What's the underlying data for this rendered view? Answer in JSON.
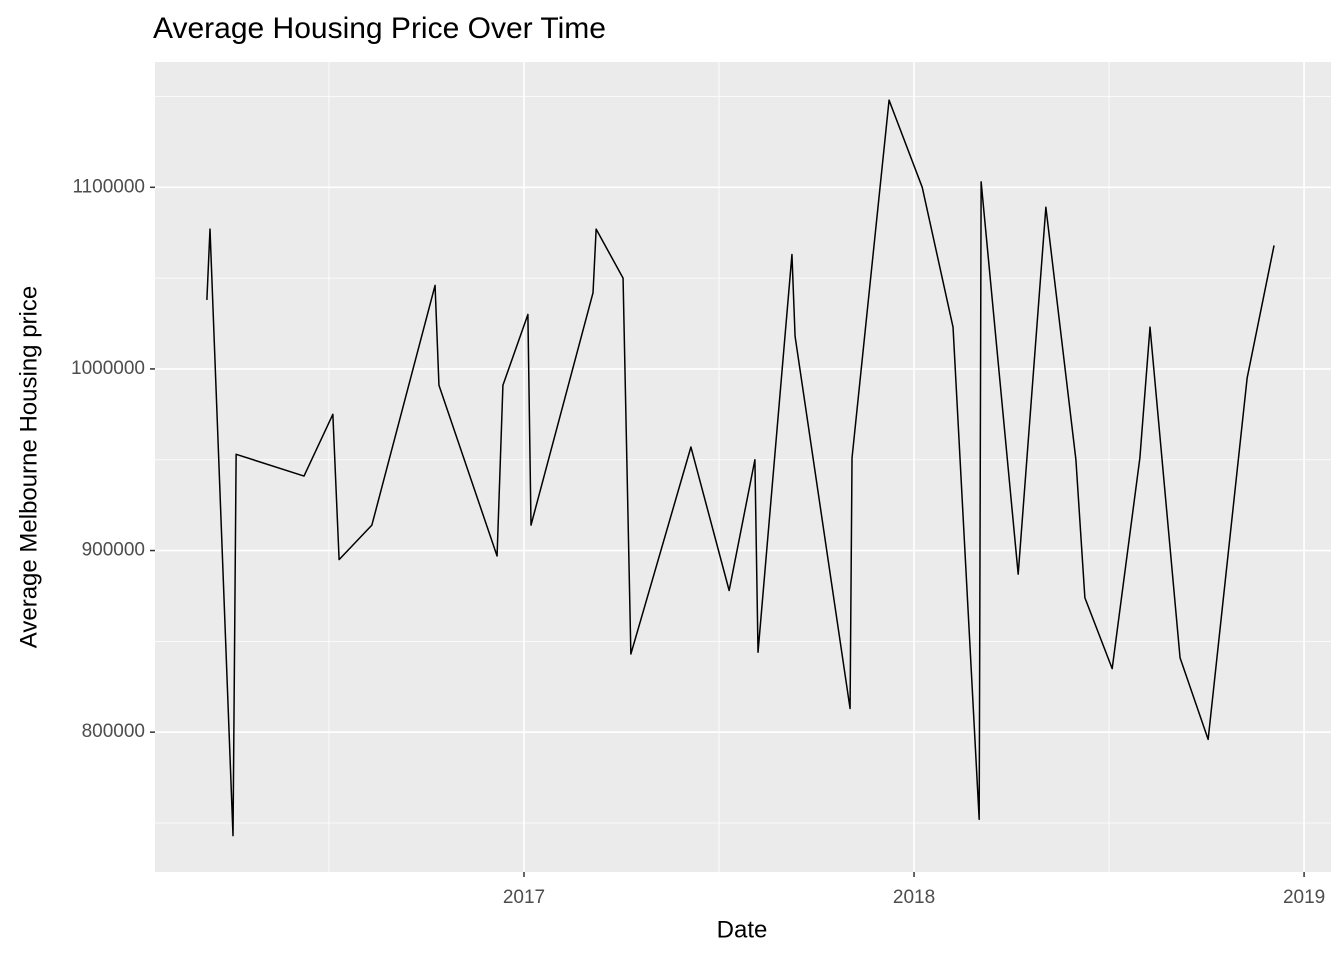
{
  "chart_data": {
    "type": "line",
    "title": "Average Housing Price Over Time",
    "x_label": "Date",
    "y_label": "Average Melbourne Housing price",
    "x": [
      2016.187,
      2016.195,
      2016.254,
      2016.262,
      2016.436,
      2016.51,
      2016.526,
      2016.61,
      2016.772,
      2016.782,
      2016.931,
      2016.946,
      2017.01,
      2017.018,
      2017.177,
      2017.185,
      2017.254,
      2017.274,
      2017.428,
      2017.526,
      2017.592,
      2017.6,
      2017.687,
      2017.695,
      2017.836,
      2017.841,
      2017.936,
      2018.021,
      2018.1,
      2018.167,
      2018.172,
      2018.267,
      2018.338,
      2018.415,
      2018.438,
      2018.508,
      2018.579,
      2018.605,
      2018.682,
      2018.754,
      2018.854,
      2018.923
    ],
    "values": [
      1038000,
      1077000,
      743000,
      953000,
      941000,
      975000,
      895000,
      914000,
      1046000,
      991000,
      897000,
      991000,
      1030000,
      914000,
      1042000,
      1077000,
      1050000,
      843000,
      957000,
      878000,
      950000,
      844000,
      1063000,
      1018000,
      813000,
      951000,
      1148000,
      1100000,
      1023000,
      752000,
      1103000,
      887000,
      1089000,
      950000,
      874000,
      835000,
      951000,
      1023000,
      841000,
      796000,
      995000,
      1068000
    ],
    "color": "#000000",
    "xlim": [
      2016.054,
      2019.069
    ],
    "xticks": [
      2017,
      2018,
      2019
    ],
    "ylim": [
      723000,
      1169000
    ],
    "yticks": [
      800000,
      900000,
      1000000,
      1100000
    ],
    "grid": true
  }
}
